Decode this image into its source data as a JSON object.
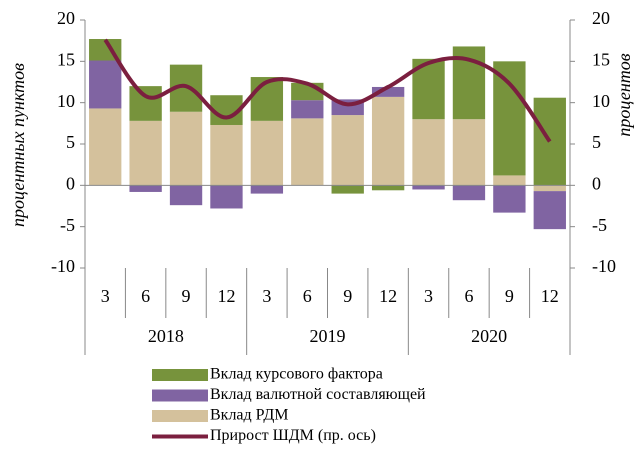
{
  "chart_data": {
    "type": "stacked_bar_line",
    "y_label": "процентных пунктов",
    "y2_label": "процентов",
    "categories": [
      "3",
      "6",
      "9",
      "12",
      "3",
      "6",
      "9",
      "12",
      "3",
      "6",
      "9",
      "12"
    ],
    "years": [
      "2018",
      "2019",
      "2020"
    ],
    "series": [
      {
        "name": "Вклад курсового фактора",
        "color": "#77933c",
        "kind": "bar",
        "values": [
          2.6,
          4.2,
          5.7,
          3.6,
          5.3,
          2.1,
          -1.0,
          -0.6,
          7.3,
          8.8,
          13.8,
          10.6
        ]
      },
      {
        "name": "Вклад валютной составляющей",
        "color": "#8064a2",
        "kind": "bar",
        "values": [
          5.8,
          -0.8,
          -2.4,
          -2.8,
          -1.0,
          2.2,
          1.9,
          1.2,
          -0.5,
          -1.8,
          -3.3,
          -4.6
        ]
      },
      {
        "name": "Вклад РДМ",
        "color": "#d4c19c",
        "kind": "bar",
        "values": [
          9.3,
          7.8,
          8.9,
          7.3,
          7.8,
          8.1,
          8.5,
          10.7,
          8.0,
          8.0,
          1.2,
          -0.7
        ]
      },
      {
        "name": "Прирост ШДМ (пр. ось)",
        "color": "#7b1f3f",
        "kind": "line",
        "axis": "y2",
        "values": [
          17.6,
          10.8,
          12.0,
          8.2,
          12.5,
          12.3,
          9.8,
          11.9,
          14.8,
          15.2,
          12.3,
          5.3
        ]
      }
    ],
    "stack_order": [
      2,
      1,
      0
    ],
    "ylim": [
      -10,
      20
    ],
    "yticks": [
      -10,
      -5,
      0,
      5,
      10,
      15,
      20
    ],
    "y2lim": [
      -10,
      20
    ],
    "y2ticks": [
      -10,
      -5,
      0,
      5,
      10,
      15,
      20
    ]
  }
}
